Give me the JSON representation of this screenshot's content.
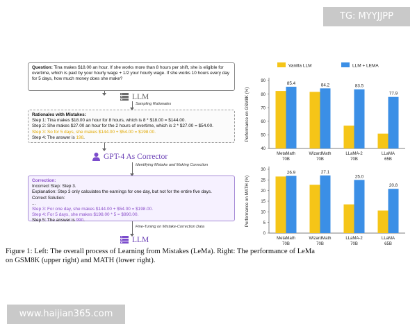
{
  "watermark_top": "TG: MYYJJPP",
  "watermark_bottom": "www.haijian365.com",
  "left_panel": {
    "question_label": "Question:",
    "question_text": "Tina makes $18.00 an hour. If she works more than 8 hours per shift, she is eligible for overtime, which is paid by your hourly wage + 1/2 your hourly wage. If she works 10 hours every day for 5 days, how much money does she make?",
    "llm_label": "LLM",
    "sampling_label": "Sampling Rationales",
    "rationale_title": "Rationales with Mistakes:",
    "rationale_steps": [
      "Step 1: Tina makes $18.00 an hour for 8 hours, which is 8 * $18.00 = $144.00.",
      "Step 2: She makes $27.00 an hour for the 2 hours of overtime, which is 2 * $27.00 = $54.00.",
      "Step 3: So for 5 days, she makes $144.00 + $54.00 = $198.00.",
      "Step 4: The answer is ",
      "198"
    ],
    "corrector_label": "GPT-4 As Corrector",
    "identify_label": "Identifying Mistake and Making Correction",
    "correction_title": "Correction:",
    "correction_lines": [
      "Incorrect Step: Step 3.",
      "Explanation: Step 3 only calculates the earnings for one day, but not for the entire five days.",
      "Correct Solution:",
      "...",
      "Step 3: For one day, she makes $144.00 + $54.00 = $198.00.",
      "Step 4: For 5 days, she makes $198.00 * 5 = $990.00.",
      "Step 5: The answer is ",
      "990"
    ],
    "finetune_label": "Fine-Tuning on Mistake-Correction Data",
    "llm2_label": "LLM"
  },
  "colors": {
    "vanilla": "#f5c518",
    "lema": "#3b8fe6"
  },
  "chart_data": [
    {
      "type": "bar",
      "ylabel": "Performance on GSM8K (%)",
      "ylim": [
        40,
        90
      ],
      "yticks": [
        40,
        50,
        60,
        70,
        80,
        90
      ],
      "categories": [
        "MetaMath 70B",
        "WizardMath 70B",
        "LLaMA-2 70B",
        "LLaMA 65B"
      ],
      "series": [
        {
          "name": "Vanilla LLM",
          "values": [
            82.3,
            81.6,
            56.8,
            50.9
          ]
        },
        {
          "name": "LLM + LEMA",
          "values": [
            85.4,
            84.2,
            83.5,
            77.9
          ]
        }
      ],
      "data_labels": [
        "85.4",
        "84.2",
        "83.5",
        "77.9"
      ],
      "legend": "top",
      "grid": false
    },
    {
      "type": "bar",
      "ylabel": "Performance on MATH (%)",
      "ylim": [
        0,
        30
      ],
      "yticks": [
        0,
        5,
        10,
        15,
        20,
        25,
        30
      ],
      "categories": [
        "MetaMath 70B",
        "WizardMath 70B",
        "LLaMA-2 70B",
        "LLaMA 65B"
      ],
      "series": [
        {
          "name": "Vanilla LLM",
          "values": [
            26.6,
            22.7,
            13.5,
            10.6
          ]
        },
        {
          "name": "LLM + LEMA",
          "values": [
            26.9,
            27.1,
            25.0,
            20.8
          ]
        }
      ],
      "data_labels": [
        "26.9",
        "27.1",
        "25.0",
        "20.8"
      ],
      "grid": false
    }
  ],
  "caption": {
    "l1a": "Figure 1: Left: The overall process of ",
    "l1b": "Learning from Mistakes (LeMa). Right: The performance of LeMa",
    "l2": "on GSM8K (upper right) and MATH (lower right)."
  }
}
